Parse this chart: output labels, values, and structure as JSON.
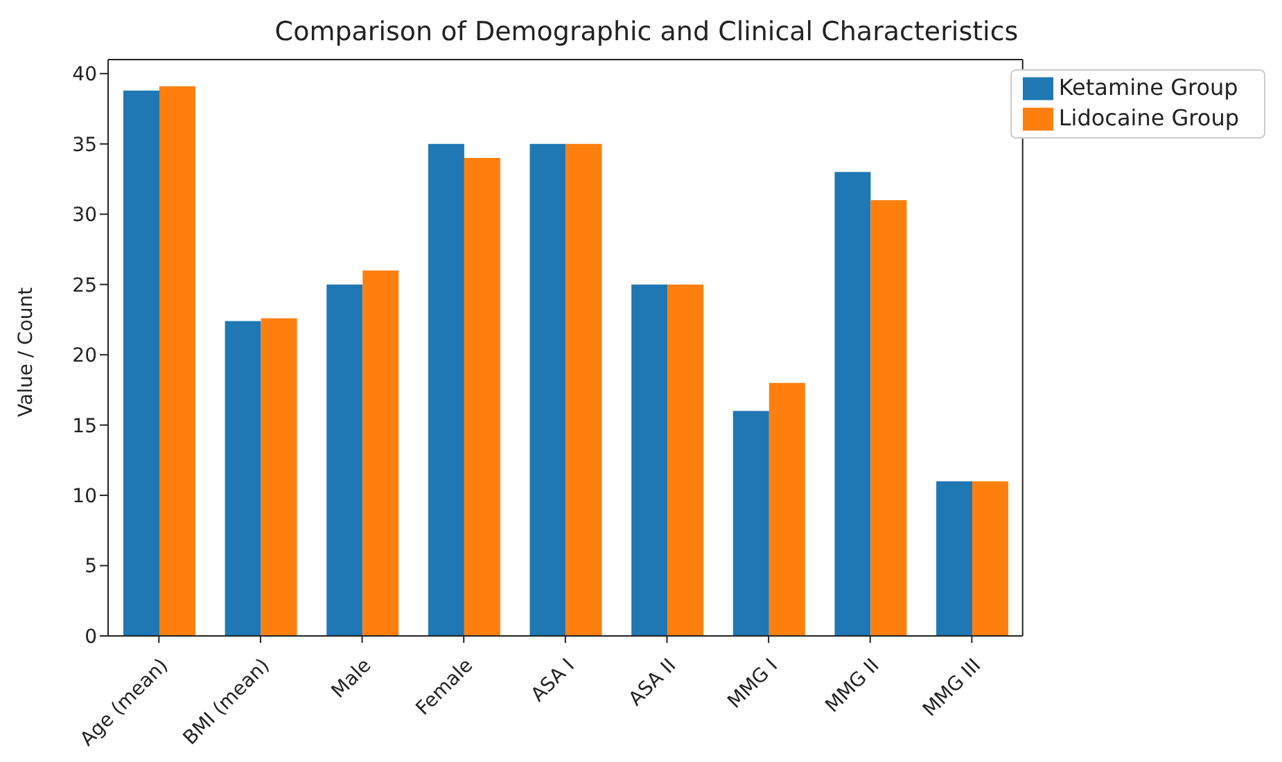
{
  "chart_data": {
    "type": "bar",
    "title": "Comparison of Demographic and Clinical Characteristics",
    "ylabel": "Value / Count",
    "categories": [
      "Age (mean)",
      "BMI (mean)",
      "Male",
      "Female",
      "ASA I",
      "ASA II",
      "MMG I",
      "MMG II",
      "MMG III"
    ],
    "series": [
      {
        "name": "Ketamine Group",
        "color": "#1f77b4",
        "values": [
          38.8,
          22.4,
          25,
          35,
          35,
          25,
          16,
          33,
          11
        ]
      },
      {
        "name": "Lidocaine Group",
        "color": "#ff7f0e",
        "values": [
          39.1,
          22.6,
          26,
          34,
          35,
          25,
          18,
          31,
          11
        ]
      }
    ],
    "ylim": [
      0,
      41
    ],
    "yticks": [
      0,
      5,
      10,
      15,
      20,
      25,
      30,
      35,
      40
    ],
    "grid": false,
    "legend": "top right"
  }
}
